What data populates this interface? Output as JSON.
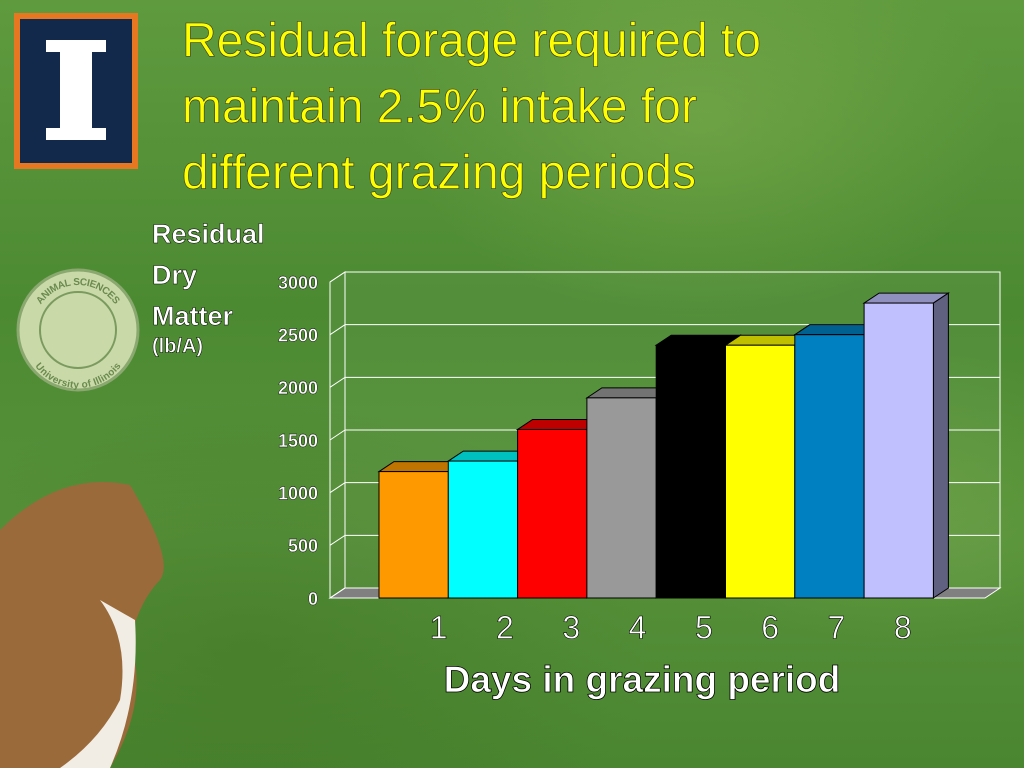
{
  "seal": [
    "ANIMAL SCIENCES",
    "University of Illinois"
  ],
  "chart_data": {
    "type": "bar3d",
    "title": [
      "Residual forage required to",
      "maintain 2.5% intake for",
      "different grazing periods"
    ],
    "ylabel": [
      "Residual",
      "Dry",
      "Matter",
      "(lb/A)"
    ],
    "xlabel": "Days in grazing period",
    "categories": [
      "1",
      "2",
      "3",
      "4",
      "5",
      "6",
      "7",
      "8"
    ],
    "values": [
      1200,
      1300,
      1600,
      1900,
      2400,
      2400,
      2500,
      2800
    ],
    "colors": [
      "#ff9900",
      "#00ffff",
      "#ff0000",
      "#999999",
      "#000000",
      "#ffff00",
      "#0080c0",
      "#c0c0ff"
    ],
    "ylim": [
      0,
      3000
    ],
    "yticks": [
      0,
      500,
      1000,
      1500,
      2000,
      2500,
      3000
    ],
    "grid": true
  }
}
